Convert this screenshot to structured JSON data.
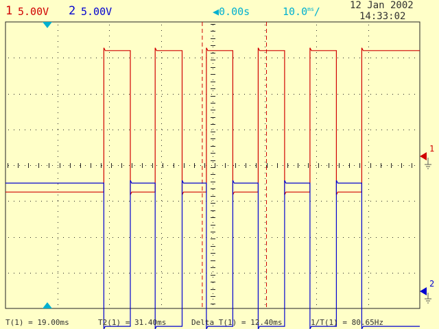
{
  "header": {
    "ch1_number": "1",
    "ch1_scale": "5.00V",
    "ch2_number": "2",
    "ch2_scale": "5.00V",
    "trigger_offset": "0.00s",
    "timebase_value": "10.0",
    "timebase_unit": "ms",
    "date": "12 Jan 2002",
    "time": "14:33:02"
  },
  "markers": {
    "ch1_label": "1",
    "ch2_label": "2"
  },
  "footer": {
    "t1": "T(1) = 19.00ms",
    "t2": "T2(1) = 31.40ms",
    "delta": "Delta T(1) = 12.40ms",
    "freq": "1/T(1) = 80.65Hz"
  },
  "colors": {
    "background": "#ffffc8",
    "ch1": "#d00000",
    "ch2": "#0000d0",
    "trigger": "#00b0d0",
    "grid": "#222222"
  },
  "chart_data": {
    "type": "line",
    "time_unit": "ms",
    "x_range_ms": [
      -19,
      61
    ],
    "volts_per_div": 5,
    "cursors_ms": [
      19.0,
      31.4
    ],
    "series": [
      {
        "channel": 1,
        "low_level_div": -0.75,
        "high_level_div": 3.2,
        "transitions_ms": [
          0,
          5.1,
          9.9,
          15.1,
          19.8,
          24.9,
          29.8,
          34.9,
          39.8,
          44.9,
          49.8
        ]
      },
      {
        "channel": 2,
        "low_level_div": -4.5,
        "high_level_div": -0.5,
        "transitions_ms": [
          0,
          5.1,
          9.9,
          15.1,
          19.8,
          24.9,
          29.8,
          34.9,
          39.8,
          44.9,
          49.8
        ]
      }
    ]
  }
}
